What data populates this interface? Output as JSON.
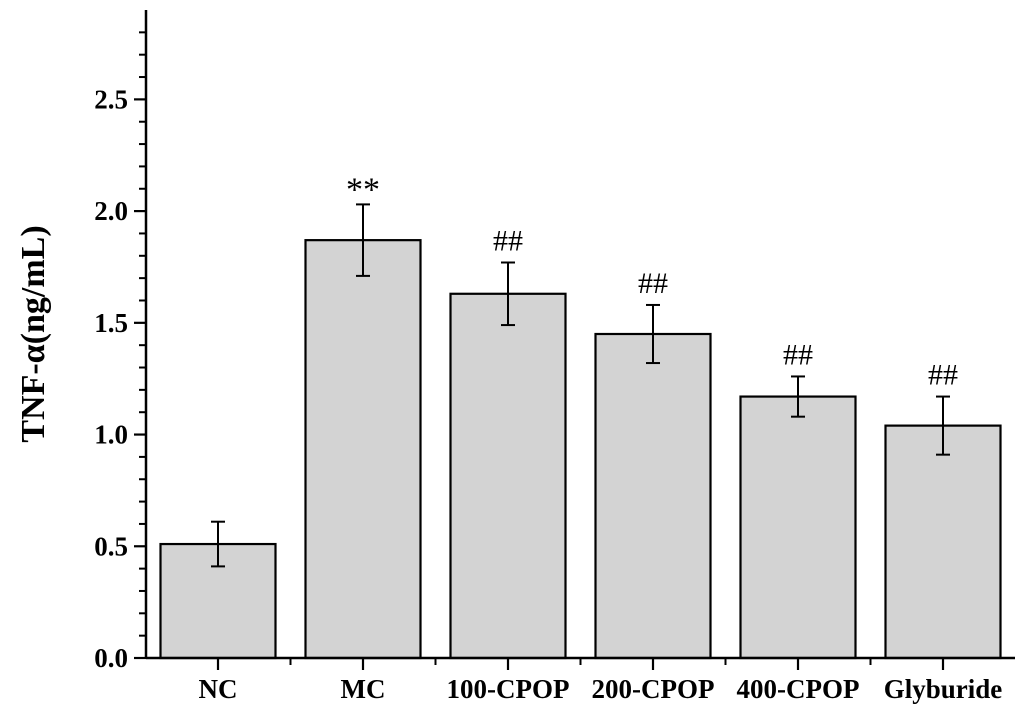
{
  "chart_data": {
    "type": "bar",
    "title": "",
    "xlabel": "",
    "ylabel": "TNF-α(ng/mL)",
    "categories": [
      "NC",
      "MC",
      "100-CPOP",
      "200-CPOP",
      "400-CPOP",
      "Glyburide"
    ],
    "values": [
      0.51,
      1.87,
      1.63,
      1.45,
      1.17,
      1.04
    ],
    "errors": [
      0.1,
      0.16,
      0.14,
      0.13,
      0.09,
      0.13
    ],
    "annotations": [
      "",
      "**",
      "##",
      "##",
      "##",
      "##"
    ],
    "ylim": [
      0,
      2.9
    ],
    "yticks": [
      0.0,
      0.5,
      1.0,
      1.5,
      2.0,
      2.5
    ],
    "ytick_labels": [
      "0.0",
      "0.5",
      "1.0",
      "1.5",
      "2.0",
      "2.5"
    ],
    "bar_color": "#d3d3d3",
    "grid": false,
    "legend": "none"
  }
}
